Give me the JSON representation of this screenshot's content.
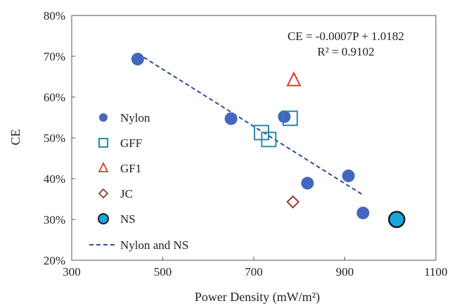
{
  "chart_data": {
    "type": "scatter",
    "xlabel": "Power Density (mW/m²)",
    "ylabel": "CE",
    "xlim": [
      300,
      1100
    ],
    "ylim": [
      20,
      80
    ],
    "x_ticks": [
      "300",
      "500",
      "700",
      "900",
      "1100"
    ],
    "y_ticks": [
      "20%",
      "30%",
      "40%",
      "50%",
      "60%",
      "70%",
      "80%"
    ],
    "grid": false,
    "legend_placement": "left",
    "series": [
      {
        "name": "Nylon",
        "marker": "filled-circle",
        "color": "#4466c0",
        "points": [
          {
            "x": 445,
            "y": 69.3
          },
          {
            "x": 650,
            "y": 54.7
          },
          {
            "x": 767,
            "y": 55.2
          },
          {
            "x": 818,
            "y": 38.9
          },
          {
            "x": 908,
            "y": 40.7
          },
          {
            "x": 940,
            "y": 31.6
          }
        ]
      },
      {
        "name": "GFF",
        "marker": "open-square",
        "color": "#2a8aa8",
        "points": [
          {
            "x": 717,
            "y": 51.3
          },
          {
            "x": 733,
            "y": 49.6
          },
          {
            "x": 780,
            "y": 54.8
          }
        ]
      },
      {
        "name": "GF1",
        "marker": "open-triangle",
        "color": "#e03c2c",
        "points": [
          {
            "x": 788,
            "y": 64.2
          }
        ]
      },
      {
        "name": "JC",
        "marker": "open-diamond",
        "color": "#9a3b2a",
        "points": [
          {
            "x": 786,
            "y": 34.3
          }
        ]
      },
      {
        "name": "NS",
        "marker": "large-filled-circle",
        "color": "#1aa6e0",
        "edge_color": "#1a1a1a",
        "points": [
          {
            "x": 1014,
            "y": 30.0
          }
        ]
      }
    ],
    "trendline": {
      "name": "Nylon and NS",
      "style": "dashed",
      "color": "#2e4c9c",
      "x_start": 445,
      "x_end": 940,
      "slope": -0.0007,
      "intercept": 1.0182
    },
    "annotations": {
      "equation": "CE = -0.0007P + 1.0182",
      "r_squared": "R² = 0.9102"
    }
  }
}
